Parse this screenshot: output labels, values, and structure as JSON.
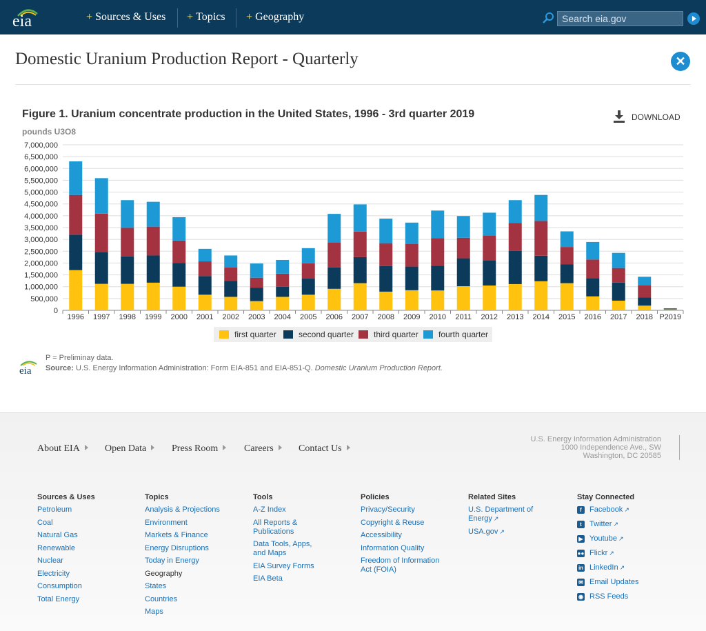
{
  "nav": {
    "logo": "eia",
    "items": [
      "Sources & Uses",
      "Topics",
      "Geography"
    ],
    "search_placeholder": "Search eia.gov"
  },
  "page": {
    "title": "Domestic Uranium Production Report - Quarterly",
    "figure_title": "Figure 1. Uranium concentrate production in the United States, 1996 - 3rd quarter 2019",
    "download_label": "DOWNLOAD",
    "unit_label": "pounds U3O8",
    "note": "P = Preliminay data.",
    "source_label": "Source:",
    "source_text": "U.S. Energy Information Administration: Form EIA-851 and EIA-851-Q.",
    "source_italic": "Domestic Uranium Production Report."
  },
  "chart_data": {
    "type": "bar",
    "stacked": true,
    "categories": [
      "1996",
      "1997",
      "1998",
      "1999",
      "2000",
      "2001",
      "2002",
      "2003",
      "2004",
      "2005",
      "2006",
      "2007",
      "2008",
      "2009",
      "2010",
      "2011",
      "2012",
      "2013",
      "2014",
      "2015",
      "2016",
      "2017",
      "2018",
      "P2019"
    ],
    "series": [
      {
        "name": "first quarter",
        "color": "#ffc20e",
        "values": [
          1700000,
          1120000,
          1120000,
          1170000,
          1000000,
          660000,
          570000,
          390000,
          570000,
          660000,
          910000,
          1150000,
          790000,
          850000,
          840000,
          1020000,
          1050000,
          1110000,
          1230000,
          1150000,
          590000,
          410000,
          200000,
          40000
        ]
      },
      {
        "name": "second quarter",
        "color": "#0b3a5a",
        "values": [
          1500000,
          1330000,
          1160000,
          1150000,
          1000000,
          790000,
          680000,
          570000,
          430000,
          680000,
          900000,
          1100000,
          1080000,
          1000000,
          1050000,
          1180000,
          1050000,
          1400000,
          1080000,
          790000,
          770000,
          760000,
          350000,
          40000
        ]
      },
      {
        "name": "third quarter",
        "color": "#a33340",
        "values": [
          1680000,
          1640000,
          1210000,
          1220000,
          950000,
          620000,
          560000,
          420000,
          550000,
          650000,
          1060000,
          1080000,
          970000,
          950000,
          1160000,
          870000,
          1070000,
          1190000,
          1470000,
          740000,
          790000,
          620000,
          500000,
          0
        ]
      },
      {
        "name": "fourth quarter",
        "color": "#1d9ad6",
        "values": [
          1420000,
          1500000,
          1170000,
          1050000,
          990000,
          530000,
          510000,
          600000,
          580000,
          640000,
          1210000,
          1150000,
          1040000,
          910000,
          1170000,
          920000,
          960000,
          960000,
          1100000,
          660000,
          740000,
          640000,
          370000,
          0
        ]
      }
    ],
    "ylim": [
      0,
      7000000
    ],
    "yticks": [
      "0",
      "500,000",
      "1,000,000",
      "1,500,000",
      "2,000,000",
      "2,500,000",
      "3,000,000",
      "3,500,000",
      "4,000,000",
      "4,500,000",
      "5,000,000",
      "5,500,000",
      "6,000,000",
      "6,500,000",
      "7,000,000"
    ],
    "grid": true,
    "legend": "bottom"
  },
  "footer": {
    "links": [
      "About EIA",
      "Open Data",
      "Press Room",
      "Careers",
      "Contact Us"
    ],
    "address": [
      "U.S. Energy Information Administration",
      "1000 Independence Ave., SW",
      "Washington, DC 20585"
    ],
    "columns": [
      {
        "head": "Sources & Uses",
        "items": [
          "Petroleum",
          "Coal",
          "Natural Gas",
          "Renewable",
          "Nuclear",
          "Electricity",
          "Consumption",
          "Total Energy"
        ]
      },
      {
        "head": "Topics",
        "items": [
          "Analysis & Projections",
          "Environment",
          "Markets & Finance",
          "Energy Disruptions",
          "Today in Energy"
        ],
        "subhead": "Geography",
        "subitems": [
          "States",
          "Countries",
          "Maps"
        ]
      },
      {
        "head": "Tools",
        "items": [
          "A-Z Index",
          "All Reports &|Publications",
          "Data Tools, Apps,|and Maps",
          "EIA Survey Forms",
          "EIA Beta"
        ]
      },
      {
        "head": "Policies",
        "items": [
          "Privacy/Security",
          "Copyright & Reuse",
          "Accessibility",
          "Information Quality",
          "Freedom of Information|Act (FOIA)"
        ]
      },
      {
        "head": "Related Sites",
        "items": [
          "U.S. Department of|Energy",
          "USA.gov"
        ]
      },
      {
        "head": "Stay Connected",
        "items": [
          "Facebook",
          "Twitter",
          "Youtube",
          "Flickr",
          "LinkedIn",
          "Email Updates",
          "RSS Feeds"
        ]
      }
    ]
  }
}
